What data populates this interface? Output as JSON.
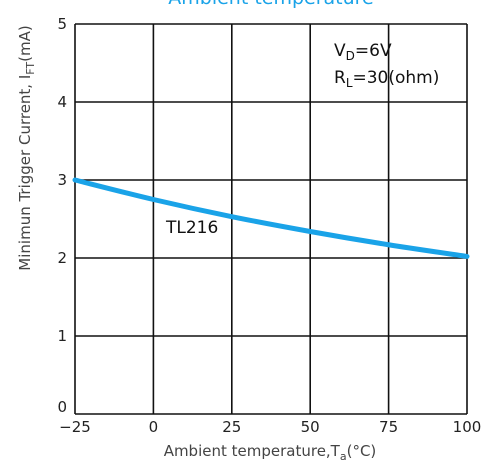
{
  "chart_data": {
    "type": "line",
    "title": "Ambient temperature",
    "xlabel": "Ambient  temperature,T",
    "xlabel_sub": "a",
    "xlabel_unit": "(°C)",
    "ylabel": "Minimun  Trigger  Current,  I",
    "ylabel_sub": "FT",
    "ylabel_unit": "(mA)",
    "xlim": [
      -25,
      100
    ],
    "ylim": [
      0,
      5
    ],
    "x_ticks": [
      -25,
      0,
      25,
      50,
      75,
      100
    ],
    "x_tick_labels": [
      "−25",
      "0",
      "25",
      "50",
      "75",
      "100"
    ],
    "y_ticks": [
      0,
      1,
      2,
      3,
      4,
      5
    ],
    "y_tick_labels": [
      "0",
      "1",
      "2",
      "3",
      "4",
      "5"
    ],
    "grid": true,
    "series": [
      {
        "name": "TL216",
        "color": "#1aa3e8",
        "x": [
          -25,
          0,
          25,
          50,
          75,
          100
        ],
        "y": [
          3.0,
          2.75,
          2.53,
          2.34,
          2.17,
          2.02
        ]
      }
    ],
    "annotations": {
      "vd_main": "V",
      "vd_sub": "D",
      "vd_rest": "=6V",
      "rl_main": "R",
      "rl_sub": "L",
      "rl_rest": "=30(ohm)"
    }
  }
}
